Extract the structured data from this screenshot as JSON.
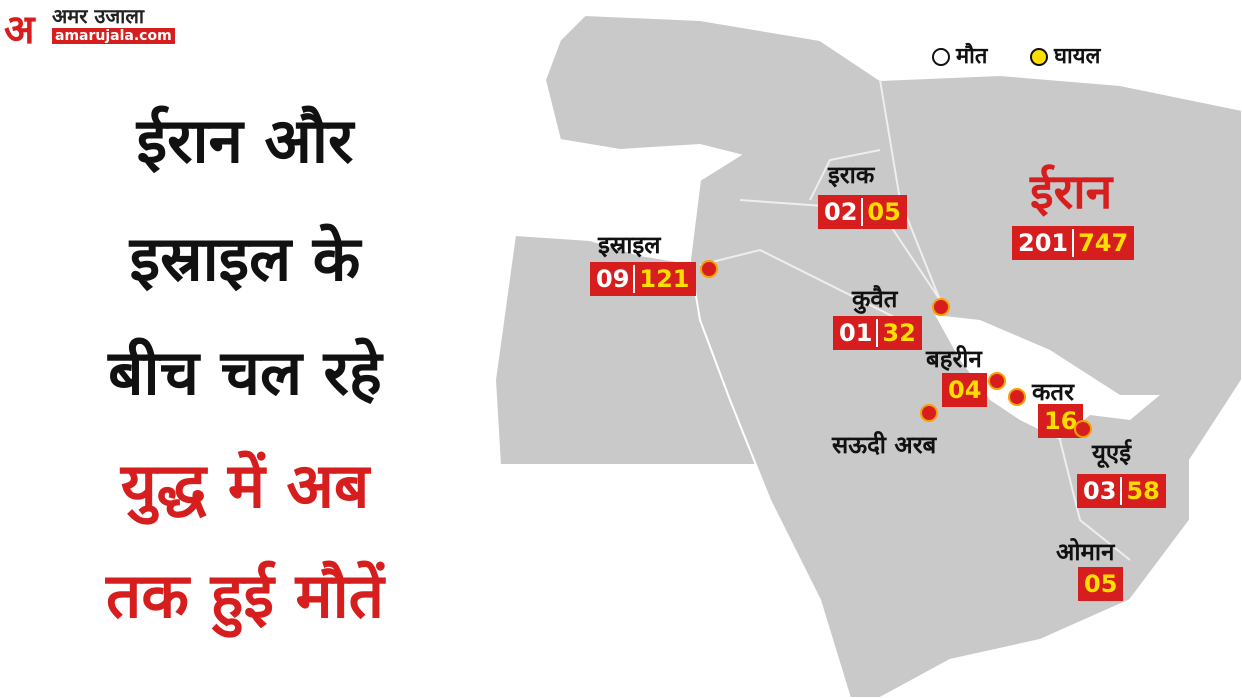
{
  "logo": {
    "mark": "अ",
    "name": "अमर उजाला",
    "site": "amarujala.com"
  },
  "headline": {
    "lines": [
      "ईरान और",
      "इस्राइल के",
      "बीच चल रहे",
      "युद्ध में अब",
      "तक हुई मौतें"
    ]
  },
  "legend": {
    "deaths": "मौत",
    "injured": "घायल"
  },
  "countries": [
    {
      "name": "ईरान",
      "deaths": "201",
      "injured": "747"
    },
    {
      "name": "इस्राइल",
      "deaths": "09",
      "injured": "121"
    },
    {
      "name": "इराक",
      "deaths": "02",
      "injured": "05"
    },
    {
      "name": "कुवैत",
      "deaths": "01",
      "injured": "32"
    },
    {
      "name": "बहरीन",
      "injured": "04"
    },
    {
      "name": "कतर",
      "injured": "16"
    },
    {
      "name": "यूएई",
      "deaths": "03",
      "injured": "58"
    },
    {
      "name": "सऊदी अरब"
    },
    {
      "name": "ओमान",
      "injured": "05"
    }
  ]
}
